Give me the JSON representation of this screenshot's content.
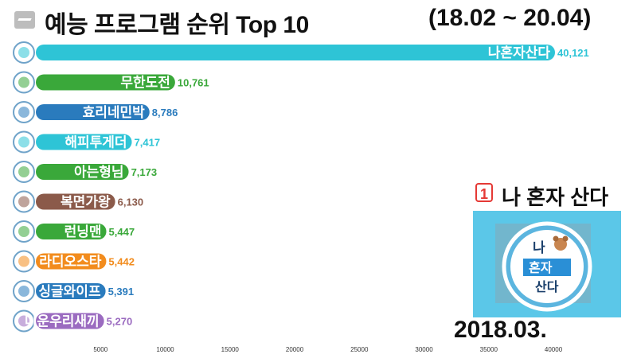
{
  "header": {
    "title": "예능 프로그램 순위 Top 10",
    "period": "(18.02 ~ 20.04)"
  },
  "feature": {
    "rank": "1",
    "name": "나 혼자 산다",
    "logo_lines": [
      "나",
      "혼자",
      "산다"
    ],
    "icon": "program-logo-icon"
  },
  "date_label": "2018.03.",
  "chart_data": {
    "type": "bar",
    "orientation": "horizontal",
    "categories": [
      "나혼자산다",
      "무한도전",
      "효리네민박",
      "해피투게더",
      "아는형님",
      "복면가왕",
      "런닝맨",
      "라디오스타",
      "싱글와이프",
      "미운우리새끼"
    ],
    "values": [
      40121,
      10761,
      8786,
      7417,
      7173,
      6130,
      5447,
      5442,
      5391,
      5270
    ],
    "value_labels": [
      "40,121",
      "10,761",
      "8,786",
      "7,417",
      "7,173",
      "6,130",
      "5,447",
      "5,442",
      "5,391",
      "5,270"
    ],
    "colors": [
      "#2ec4d6",
      "#3aa83a",
      "#2a7bbd",
      "#2ec4d6",
      "#3aa83a",
      "#8b5a4a",
      "#3aa83a",
      "#f28c1e",
      "#2a7bbd",
      "#9b6bc0"
    ],
    "x_ticks": [
      5000,
      10000,
      15000,
      20000,
      25000,
      30000,
      35000,
      40000
    ],
    "x_tick_labels": [
      "5000",
      "10000",
      "15000",
      "20000",
      "25000",
      "30000",
      "35000",
      "40000"
    ],
    "xlim": [
      0,
      40000
    ],
    "grid": false,
    "legend": "none"
  }
}
